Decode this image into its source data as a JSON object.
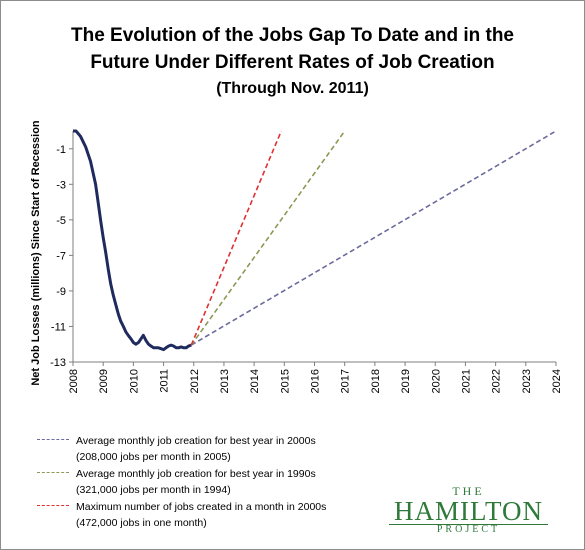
{
  "title_line1": "The Evolution of the Jobs Gap To Date and in the",
  "title_line2": "Future Under Different Rates of Job Creation",
  "subtitle": "(Through Nov. 2011)",
  "logo": {
    "the": "THE",
    "name": "HAMILTON",
    "project": "PROJECT"
  },
  "chart_data": {
    "type": "line",
    "title": "The Evolution of the Jobs Gap To Date and in the Future Under Different Rates of Job Creation",
    "subtitle": "(Through Nov. 2011)",
    "ylabel": "Net Job Losses (millions) Since Start of Recession",
    "xlabel": "",
    "xlim": [
      2008,
      2024
    ],
    "ylim": [
      -13,
      0
    ],
    "x_ticks": [
      "2008",
      "2009",
      "2010",
      "2011",
      "2012",
      "2013",
      "2014",
      "2015",
      "2016",
      "2017",
      "2018",
      "2019",
      "2020",
      "2021",
      "2022",
      "2023",
      "2024"
    ],
    "y_ticks": [
      "-1",
      "-3",
      "-5",
      "-7",
      "-9",
      "-11",
      "-13"
    ],
    "y_tick_values": [
      -1,
      -3,
      -5,
      -7,
      -9,
      -11,
      -13
    ],
    "grid": false,
    "legend_position": "bottom-left",
    "series": [
      {
        "key": "actual",
        "style": "solid",
        "color": "#1f2b5e",
        "points": [
          [
            2008.0,
            0.0
          ],
          [
            2008.1,
            0.0
          ],
          [
            2008.25,
            -0.3
          ],
          [
            2008.42,
            -0.9
          ],
          [
            2008.58,
            -1.7
          ],
          [
            2008.75,
            -3.0
          ],
          [
            2008.83,
            -4.0
          ],
          [
            2008.92,
            -5.1
          ],
          [
            2009.0,
            -6.0
          ],
          [
            2009.08,
            -6.8
          ],
          [
            2009.17,
            -7.8
          ],
          [
            2009.25,
            -8.6
          ],
          [
            2009.33,
            -9.2
          ],
          [
            2009.42,
            -9.8
          ],
          [
            2009.5,
            -10.3
          ],
          [
            2009.58,
            -10.7
          ],
          [
            2009.67,
            -11.0
          ],
          [
            2009.75,
            -11.3
          ],
          [
            2009.83,
            -11.5
          ],
          [
            2009.92,
            -11.7
          ],
          [
            2010.0,
            -11.9
          ],
          [
            2010.08,
            -12.0
          ],
          [
            2010.17,
            -11.9
          ],
          [
            2010.25,
            -11.7
          ],
          [
            2010.33,
            -11.5
          ],
          [
            2010.42,
            -11.8
          ],
          [
            2010.5,
            -12.0
          ],
          [
            2010.58,
            -12.1
          ],
          [
            2010.67,
            -12.2
          ],
          [
            2010.75,
            -12.2
          ],
          [
            2010.83,
            -12.2
          ],
          [
            2010.92,
            -12.25
          ],
          [
            2011.0,
            -12.3
          ],
          [
            2011.08,
            -12.2
          ],
          [
            2011.17,
            -12.1
          ],
          [
            2011.25,
            -12.05
          ],
          [
            2011.33,
            -12.1
          ],
          [
            2011.42,
            -12.2
          ],
          [
            2011.5,
            -12.2
          ],
          [
            2011.58,
            -12.15
          ],
          [
            2011.67,
            -12.2
          ],
          [
            2011.75,
            -12.2
          ],
          [
            2011.83,
            -12.1
          ],
          [
            2011.92,
            -12.05
          ]
        ]
      },
      {
        "key": "best2000s",
        "name": "Average monthly job creation for best year in 2000s",
        "detail": "(208,000 jobs per month in 2005)",
        "style": "dashed",
        "color": "#6b6b9e",
        "points": [
          [
            2011.92,
            -12.05
          ],
          [
            2024.0,
            0.0
          ]
        ]
      },
      {
        "key": "best1990s",
        "name": "Average monthly job creation for best year in 1990s",
        "detail": "(321,000 jobs per month in 1994)",
        "style": "dashed",
        "color": "#8a9a55",
        "points": [
          [
            2011.92,
            -12.05
          ],
          [
            2017.0,
            0.0
          ]
        ]
      },
      {
        "key": "max2000s",
        "name": "Maximum number of jobs created in a month in 2000s",
        "detail": "(472,000 jobs in one month)",
        "style": "dashed",
        "color": "#e03030",
        "points": [
          [
            2011.92,
            -12.05
          ],
          [
            2014.9,
            0.0
          ]
        ]
      }
    ]
  }
}
